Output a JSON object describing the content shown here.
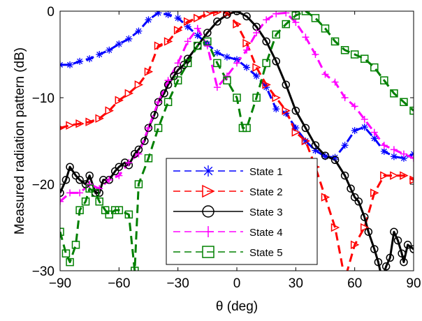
{
  "chart_data": {
    "type": "line",
    "title": "",
    "xlabel": "θ (deg)",
    "ylabel": "Measured radiation pattern (dB)",
    "xlim": [
      -90,
      90
    ],
    "ylim": [
      -30,
      0
    ],
    "x_ticks": [
      -90,
      -60,
      -30,
      0,
      30,
      60,
      90
    ],
    "y_ticks": [
      -30,
      -20,
      -10,
      0
    ],
    "x_tick_labels": [
      "−90",
      "−60",
      "−30",
      "0",
      "30",
      "60",
      "90"
    ],
    "y_tick_labels": [
      "−30",
      "−20",
      "−10",
      "0"
    ],
    "grid": false,
    "legend_position": "lower-center",
    "series": [
      {
        "name": "State 1",
        "color": "#0000ff",
        "dash": "dashed",
        "marker": "asterisk",
        "points": [
          [
            -90,
            -6.2
          ],
          [
            -85,
            -6.2
          ],
          [
            -80,
            -5.8
          ],
          [
            -75,
            -5.5
          ],
          [
            -70,
            -5
          ],
          [
            -65,
            -4.5
          ],
          [
            -60,
            -3.8
          ],
          [
            -55,
            -3.2
          ],
          [
            -50,
            -2.3
          ],
          [
            -45,
            -1
          ],
          [
            -40,
            -0.2
          ],
          [
            -35,
            -0.4
          ],
          [
            -30,
            -0.8
          ],
          [
            -25,
            -1.8
          ],
          [
            -20,
            -2.8
          ],
          [
            -15,
            -3.8
          ],
          [
            -10,
            -4.8
          ],
          [
            -5,
            -5.3
          ],
          [
            0,
            -5.6
          ],
          [
            5,
            -6.5
          ],
          [
            10,
            -7.5
          ],
          [
            15,
            -8.8
          ],
          [
            20,
            -11.3
          ],
          [
            25,
            -11.8
          ],
          [
            30,
            -13.5
          ],
          [
            35,
            -15
          ],
          [
            40,
            -16.1
          ],
          [
            45,
            -16.8
          ],
          [
            50,
            -16.9
          ],
          [
            55,
            -15.5
          ],
          [
            60,
            -13.8
          ],
          [
            65,
            -13.4
          ],
          [
            70,
            -14.7
          ],
          [
            75,
            -16.2
          ],
          [
            80,
            -16.8
          ],
          [
            85,
            -17
          ],
          [
            90,
            -16.5
          ]
        ]
      },
      {
        "name": "State 2",
        "color": "#ff0000",
        "dash": "dashed",
        "marker": "triangle-right",
        "points": [
          [
            -90,
            -13.5
          ],
          [
            -85,
            -13.2
          ],
          [
            -80,
            -13
          ],
          [
            -75,
            -12.8
          ],
          [
            -70,
            -12.4
          ],
          [
            -65,
            -11.5
          ],
          [
            -60,
            -10.3
          ],
          [
            -55,
            -9.5
          ],
          [
            -50,
            -8.5
          ],
          [
            -45,
            -7
          ],
          [
            -40,
            -4
          ],
          [
            -35,
            -3.5
          ],
          [
            -30,
            -2.2
          ],
          [
            -25,
            -1.2
          ],
          [
            -20,
            -0.8
          ],
          [
            -15,
            -0.3
          ],
          [
            -10,
            -0.1
          ],
          [
            -5,
            -0.2
          ],
          [
            0,
            -1.5
          ],
          [
            5,
            -3.7
          ],
          [
            10,
            -6.5
          ],
          [
            15,
            -8.5
          ],
          [
            20,
            -10
          ],
          [
            25,
            -11.5
          ],
          [
            30,
            -14
          ],
          [
            35,
            -15
          ],
          [
            40,
            -18
          ],
          [
            45,
            -21.5
          ],
          [
            50,
            -25
          ],
          [
            55,
            -31
          ],
          [
            60,
            -27
          ],
          [
            65,
            -25
          ],
          [
            70,
            -21
          ],
          [
            75,
            -19
          ],
          [
            80,
            -19
          ],
          [
            85,
            -19
          ],
          [
            90,
            -19.5
          ]
        ]
      },
      {
        "name": "State 3",
        "color": "#000000",
        "dash": "solid",
        "marker": "circle",
        "points": [
          [
            -90,
            -21
          ],
          [
            -87,
            -19.5
          ],
          [
            -85,
            -18
          ],
          [
            -82,
            -19
          ],
          [
            -80,
            -19.5
          ],
          [
            -77,
            -20
          ],
          [
            -75,
            -19
          ],
          [
            -72,
            -21
          ],
          [
            -70,
            -21
          ],
          [
            -68,
            -19.5
          ],
          [
            -65,
            -19.5
          ],
          [
            -62,
            -18.5
          ],
          [
            -60,
            -18
          ],
          [
            -57,
            -17.5
          ],
          [
            -55,
            -17.8
          ],
          [
            -52,
            -16.5
          ],
          [
            -50,
            -16
          ],
          [
            -47,
            -15
          ],
          [
            -45,
            -13.5
          ],
          [
            -42,
            -12
          ],
          [
            -40,
            -10.5
          ],
          [
            -37,
            -9.5
          ],
          [
            -35,
            -8.5
          ],
          [
            -32,
            -7.5
          ],
          [
            -30,
            -6.8
          ],
          [
            -27,
            -6.2
          ],
          [
            -25,
            -5.5
          ],
          [
            -20,
            -4
          ],
          [
            -15,
            -2.5
          ],
          [
            -10,
            -1.2
          ],
          [
            -5,
            -0.4
          ],
          [
            0,
            0
          ],
          [
            5,
            -0.6
          ],
          [
            10,
            -1.8
          ],
          [
            15,
            -3.5
          ],
          [
            20,
            -5.8
          ],
          [
            25,
            -8.5
          ],
          [
            30,
            -11.5
          ],
          [
            35,
            -13.5
          ],
          [
            40,
            -15.5
          ],
          [
            45,
            -16.7
          ],
          [
            50,
            -17.2
          ],
          [
            55,
            -19
          ],
          [
            58,
            -20.5
          ],
          [
            60,
            -21.5
          ],
          [
            62,
            -22
          ],
          [
            65,
            -23.8
          ],
          [
            67,
            -25.5
          ],
          [
            70,
            -27.5
          ],
          [
            72,
            -29
          ],
          [
            74,
            -31
          ],
          [
            76,
            -29.5
          ],
          [
            78,
            -28.5
          ],
          [
            80,
            -25.5
          ],
          [
            82,
            -26.5
          ],
          [
            84,
            -28
          ],
          [
            85,
            -29
          ],
          [
            87,
            -27
          ],
          [
            90,
            -27.5
          ]
        ]
      },
      {
        "name": "State 4",
        "color": "#ff00ff",
        "dash": "dashed",
        "marker": "plus",
        "points": [
          [
            -90,
            -22
          ],
          [
            -85,
            -21
          ],
          [
            -80,
            -21
          ],
          [
            -75,
            -20
          ],
          [
            -70,
            -20.5
          ],
          [
            -65,
            -19.5
          ],
          [
            -60,
            -19
          ],
          [
            -55,
            -17.5
          ],
          [
            -50,
            -16.5
          ],
          [
            -45,
            -13.5
          ],
          [
            -40,
            -10.5
          ],
          [
            -35,
            -8
          ],
          [
            -30,
            -6
          ],
          [
            -25,
            -3.5
          ],
          [
            -20,
            -2
          ],
          [
            -15,
            -4
          ],
          [
            -10,
            -8.8
          ],
          [
            -5,
            -7.5
          ],
          [
            0,
            -6
          ],
          [
            5,
            -4.5
          ],
          [
            10,
            -2.5
          ],
          [
            15,
            -1
          ],
          [
            20,
            -0.3
          ],
          [
            25,
            -0.2
          ],
          [
            30,
            -1.3
          ],
          [
            35,
            -3
          ],
          [
            40,
            -5
          ],
          [
            45,
            -7.3
          ],
          [
            50,
            -8.2
          ],
          [
            55,
            -10
          ],
          [
            60,
            -11
          ],
          [
            65,
            -12.5
          ],
          [
            70,
            -14
          ],
          [
            75,
            -15.5
          ],
          [
            80,
            -16
          ],
          [
            85,
            -16.5
          ],
          [
            90,
            -17
          ]
        ]
      },
      {
        "name": "State 5",
        "color": "#008000",
        "dash": "dashed",
        "marker": "square",
        "points": [
          [
            -90,
            -25.5
          ],
          [
            -87,
            -28
          ],
          [
            -85,
            -29
          ],
          [
            -82,
            -27
          ],
          [
            -80,
            -23
          ],
          [
            -77,
            -22
          ],
          [
            -75,
            -20.5
          ],
          [
            -72,
            -21
          ],
          [
            -70,
            -22
          ],
          [
            -67,
            -23
          ],
          [
            -65,
            -23.5
          ],
          [
            -62,
            -23
          ],
          [
            -60,
            -23
          ],
          [
            -55,
            -23.5
          ],
          [
            -52,
            -30
          ],
          [
            -50,
            -20
          ],
          [
            -45,
            -17
          ],
          [
            -40,
            -13.5
          ],
          [
            -35,
            -10.5
          ],
          [
            -30,
            -8
          ],
          [
            -25,
            -6
          ],
          [
            -20,
            -4
          ],
          [
            -15,
            -3.5
          ],
          [
            -10,
            -6
          ],
          [
            -5,
            -8
          ],
          [
            0,
            -10
          ],
          [
            3,
            -13.5
          ],
          [
            5,
            -13.5
          ],
          [
            10,
            -10
          ],
          [
            15,
            -6
          ],
          [
            20,
            -2.7
          ],
          [
            25,
            -1.5
          ],
          [
            30,
            -0.5
          ],
          [
            35,
            0
          ],
          [
            40,
            -0.8
          ],
          [
            45,
            -2
          ],
          [
            50,
            -3.5
          ],
          [
            55,
            -4.5
          ],
          [
            60,
            -5
          ],
          [
            65,
            -5.5
          ],
          [
            70,
            -6.5
          ],
          [
            75,
            -8
          ],
          [
            80,
            -9.5
          ],
          [
            85,
            -10.5
          ],
          [
            90,
            -11.5
          ]
        ]
      }
    ]
  },
  "legend": {
    "items": [
      {
        "label": "State 1"
      },
      {
        "label": "State 2"
      },
      {
        "label": "State 3"
      },
      {
        "label": "State 4"
      },
      {
        "label": "State 5"
      }
    ]
  }
}
